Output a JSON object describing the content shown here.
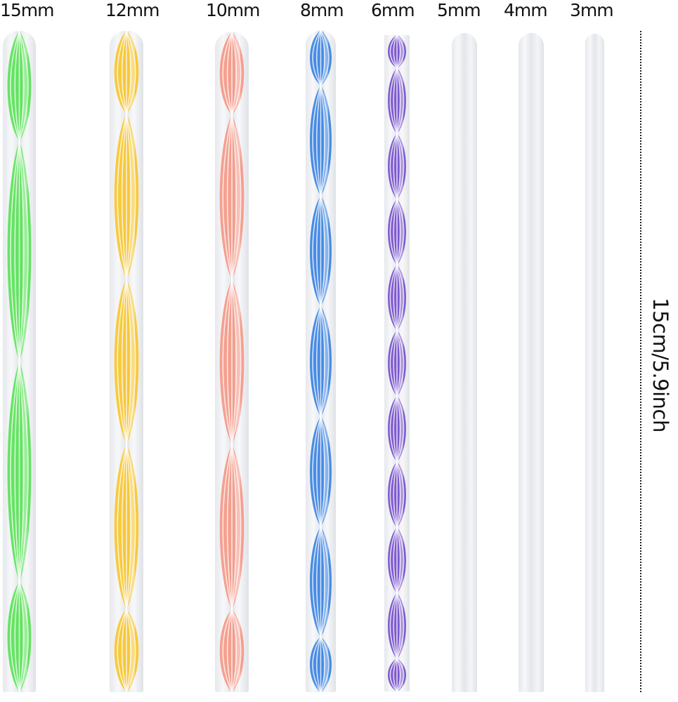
{
  "rods": [
    {
      "size": "15mm",
      "color": "#4ee04a",
      "twists": 3
    },
    {
      "size": "12mm",
      "color": "#f8c21e",
      "twists": 4
    },
    {
      "size": "10mm",
      "color": "#f4907e",
      "twists": 4
    },
    {
      "size": "8mm",
      "color": "#2a79e0",
      "twists": 6
    },
    {
      "size": "6mm",
      "color": "#6a3fc8",
      "twists": 10
    },
    {
      "size": "5mm",
      "color": null,
      "twists": 0
    },
    {
      "size": "4mm",
      "color": null,
      "twists": 0
    },
    {
      "size": "3mm",
      "color": null,
      "twists": 0
    }
  ],
  "dimension_label": "15cm/5.9inch"
}
